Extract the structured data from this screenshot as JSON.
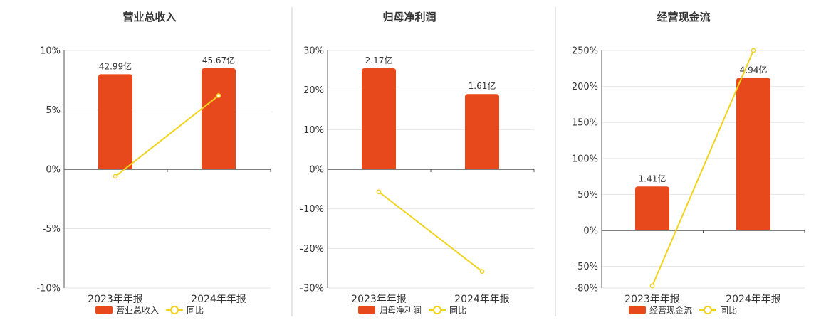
{
  "colors": {
    "bar": "#e8491c",
    "line": "#f2d21c",
    "axis": "#555555",
    "grid": "#e6e6e6",
    "divider": "#cccccc"
  },
  "chart_data": [
    {
      "type": "bar",
      "title": "营业总收入",
      "categories": [
        "2023年年报",
        "2024年年报"
      ],
      "ylim": [
        -10,
        10
      ],
      "yticks": [
        10,
        5,
        0,
        -5,
        -10
      ],
      "tick_format": "%",
      "series": [
        {
          "name": "营业总收入",
          "type": "bar",
          "values": [
            8.0,
            8.5
          ],
          "labels": [
            "42.99亿",
            "45.67亿"
          ]
        },
        {
          "name": "同比",
          "type": "line",
          "values": [
            -0.6,
            6.2
          ]
        }
      ],
      "grid": true,
      "legend": "bottom"
    },
    {
      "type": "bar",
      "title": "归母净利润",
      "categories": [
        "2023年年报",
        "2024年年报"
      ],
      "ylim": [
        -30,
        30
      ],
      "yticks": [
        30,
        20,
        10,
        0,
        -10,
        -20,
        -30
      ],
      "tick_format": "%",
      "series": [
        {
          "name": "归母净利润",
          "type": "bar",
          "values": [
            25.5,
            19.0
          ],
          "labels": [
            "2.17亿",
            "1.61亿"
          ]
        },
        {
          "name": "同比",
          "type": "line",
          "values": [
            -5.7,
            -25.8
          ]
        }
      ],
      "grid": true,
      "legend": "bottom"
    },
    {
      "type": "bar",
      "title": "经营现金流",
      "categories": [
        "2023年年报",
        "2024年年报"
      ],
      "ylim": [
        -80,
        250
      ],
      "yticks": [
        250,
        200,
        150,
        100,
        50,
        0,
        -50,
        -80
      ],
      "tick_format": "%",
      "series": [
        {
          "name": "经营现金流",
          "type": "bar",
          "values": [
            61,
            212
          ],
          "labels": [
            "1.41亿",
            "4.94亿"
          ]
        },
        {
          "name": "同比",
          "type": "line",
          "values": [
            -77,
            250
          ]
        }
      ],
      "grid": true,
      "legend": "bottom"
    }
  ]
}
